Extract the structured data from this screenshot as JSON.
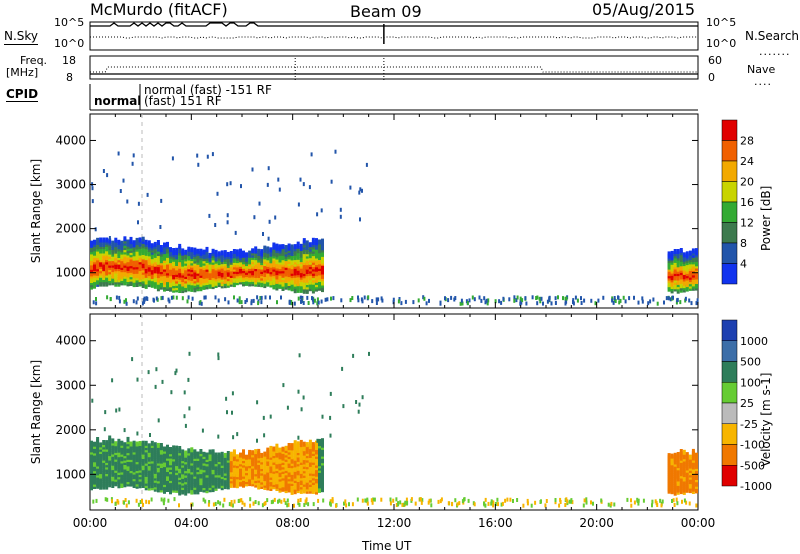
{
  "header": {
    "station": "McMurdo (fitACF)",
    "beam": "Beam 09",
    "date": "05/Aug/2015"
  },
  "status": {
    "nsky_label": "N.Sky",
    "nsearch_label": "N.Search",
    "freq_label_1": "Freq.",
    "freq_label_2": "[MHz]",
    "nave_label": "Nave",
    "cpid_label": "CPID",
    "left_top": "10^5",
    "left_bottom": "10^0",
    "right_top": "10^5",
    "right_bottom": "10^0",
    "freq_top": "18",
    "freq_bottom": "8",
    "nave_top": "60",
    "nave_bottom": "0",
    "cpid_1": "normal",
    "cpid_2": "normal (fast) -151 RF",
    "cpid_3": "(fast) 151 RF"
  },
  "chart_data": [
    {
      "type": "heatmap",
      "name": "power",
      "ylabel": "Slant Range [km]",
      "ylim": [
        200,
        4600
      ],
      "yticks": [
        "1000",
        "2000",
        "3000",
        "4000"
      ],
      "colorbar_label": "Power [dB]",
      "colorbar_ticks": [
        "4",
        "8",
        "12",
        "16",
        "20",
        "24",
        "28"
      ],
      "colors": [
        "#1133ee",
        "#2255aa",
        "#3d7a4e",
        "#33aa33",
        "#c8d400",
        "#f2a900",
        "#f06000",
        "#e00000"
      ],
      "bands": [
        {
          "t0": 0.0,
          "t1": 9.2,
          "r0": 600,
          "r1": 1700
        },
        {
          "t0": 22.8,
          "t1": 24.0,
          "r0": 600,
          "r1": 1700
        }
      ]
    },
    {
      "type": "heatmap",
      "name": "velocity",
      "ylabel": "Slant Range [km]",
      "ylim": [
        200,
        4600
      ],
      "yticks": [
        "1000",
        "2000",
        "3000",
        "4000"
      ],
      "colorbar_label": "Velocity [m s-1]",
      "colorbar_ticks": [
        "1000",
        "500",
        "100",
        "25",
        "-25",
        "-100",
        "-500",
        "-1000"
      ],
      "colors": [
        "#1c3fb0",
        "#3c6ea8",
        "#2e7d5a",
        "#66cc33",
        "#bbbbbb",
        "#f7b500",
        "#f07800",
        "#e00000"
      ],
      "bands": [
        {
          "t0": 0.0,
          "t1": 9.2,
          "r0": 600,
          "r1": 1700
        },
        {
          "t0": 22.8,
          "t1": 24.0,
          "r0": 600,
          "r1": 1700
        }
      ]
    }
  ],
  "xaxis": {
    "label": "Time UT",
    "ticks": [
      "00:00",
      "04:00",
      "08:00",
      "12:00",
      "16:00",
      "20:00",
      "00:00"
    ],
    "range": [
      0,
      24
    ]
  }
}
